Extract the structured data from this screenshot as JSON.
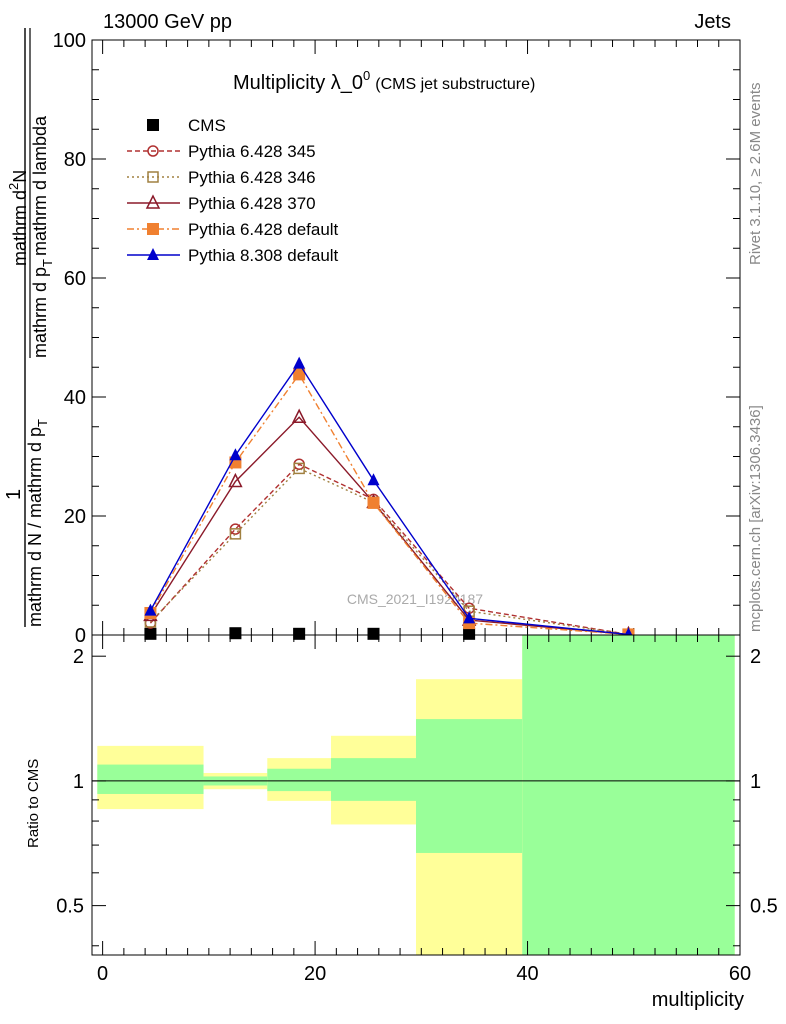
{
  "header": {
    "energy_label": "13000 GeV pp",
    "process_label": "Jets"
  },
  "side_text": {
    "rivet": "Rivet 3.1.10, ≥ 2.6M events",
    "mcplots": "mcplots.cern.ch [arXiv:1306.3436]"
  },
  "watermark": "CMS_2021_I1920187",
  "chart_data": [
    {
      "type": "line",
      "panel": "main",
      "title_main": "Multiplicity λ_0",
      "title_sup": "0",
      "title_sub": "(CMS jet substructure)",
      "ylabel_prefix": "1",
      "ylabel_denominator": "mathrm d N / mathrm d p",
      "ylabel_denominator_sub": "T",
      "ylabel_numerator": "mathrm d",
      "ylabel_numerator_sup": "2",
      "ylabel_numerator_tail": "N",
      "ylabel_denominator2": "mathrm d p",
      "ylabel_denominator2_sub": "T",
      "ylabel_denominator2_tail": "mathrm d lambda",
      "xlim": [
        -1,
        60
      ],
      "ylim": [
        0,
        100
      ],
      "yticks": [
        0,
        20,
        40,
        60,
        80,
        100
      ],
      "legend_position": "top-left",
      "series": [
        {
          "name": "CMS",
          "color": "#000000",
          "marker": "square-filled",
          "line": "none",
          "x": [
            4.5,
            12.5,
            18.5,
            25.5,
            34.5,
            49.5
          ],
          "y": [
            0.2,
            0.3,
            0.2,
            0.2,
            0.2,
            0.05
          ]
        },
        {
          "name": "Pythia 6.428 345",
          "color": "#b03030",
          "marker": "circle-open",
          "line": "dashed",
          "x": [
            4.5,
            12.5,
            18.5,
            25.5,
            34.5,
            49.5
          ],
          "y": [
            2.0,
            17.8,
            28.7,
            22.8,
            4.5,
            0.1
          ]
        },
        {
          "name": "Pythia 6.428 346",
          "color": "#a08040",
          "marker": "square-open",
          "line": "dotted",
          "x": [
            4.5,
            12.5,
            18.5,
            25.5,
            34.5,
            49.5
          ],
          "y": [
            2.2,
            17.0,
            28.0,
            22.3,
            4.0,
            0.1
          ]
        },
        {
          "name": "Pythia 6.428 370",
          "color": "#8b1a2a",
          "marker": "triangle-open",
          "line": "solid",
          "x": [
            4.5,
            12.5,
            18.5,
            25.5,
            34.5,
            49.5
          ],
          "y": [
            3.3,
            25.8,
            36.6,
            22.3,
            2.5,
            0.1
          ]
        },
        {
          "name": "Pythia 6.428 default",
          "color": "#f08030",
          "marker": "square-filled",
          "line": "dashdot",
          "x": [
            4.5,
            12.5,
            18.5,
            25.5,
            34.5,
            49.5
          ],
          "y": [
            3.7,
            29.0,
            43.8,
            22.2,
            2.0,
            0.1
          ]
        },
        {
          "name": "Pythia 8.308 default",
          "color": "#0000cc",
          "marker": "triangle-filled",
          "line": "solid",
          "x": [
            4.5,
            12.5,
            18.5,
            25.5,
            34.5,
            49.5
          ],
          "y": [
            4.1,
            30.2,
            45.6,
            26.0,
            2.8,
            0.1
          ]
        }
      ]
    },
    {
      "type": "area",
      "panel": "ratio",
      "ylabel": "Ratio to CMS",
      "xlabel": "multiplicity",
      "xlim": [
        -1,
        60
      ],
      "ylim": [
        0.38,
        2.25
      ],
      "yticks": [
        0.5,
        1,
        2
      ],
      "xticks": [
        0,
        20,
        40,
        60
      ],
      "reference_line": 1,
      "bins": [
        {
          "x_low": -0.5,
          "x_high": 9.5,
          "yellow_low": 0.855,
          "yellow_high": 1.215,
          "green_low": 0.93,
          "green_high": 1.095
        },
        {
          "x_low": 9.5,
          "x_high": 15.5,
          "yellow_low": 0.955,
          "yellow_high": 1.045,
          "green_low": 0.975,
          "green_high": 1.025
        },
        {
          "x_low": 15.5,
          "x_high": 21.5,
          "yellow_low": 0.895,
          "yellow_high": 1.135,
          "green_low": 0.945,
          "green_high": 1.07
        },
        {
          "x_low": 21.5,
          "x_high": 29.5,
          "yellow_low": 0.785,
          "yellow_high": 1.285,
          "green_low": 0.895,
          "green_high": 1.135
        },
        {
          "x_low": 29.5,
          "x_high": 39.5,
          "yellow_low": 0.35,
          "yellow_high": 1.76,
          "green_low": 0.67,
          "green_high": 1.41
        },
        {
          "x_low": 39.5,
          "x_high": 59.5,
          "yellow_low": 0.35,
          "yellow_high": 2.3,
          "green_low": 0.35,
          "green_high": 2.3
        }
      ]
    }
  ]
}
